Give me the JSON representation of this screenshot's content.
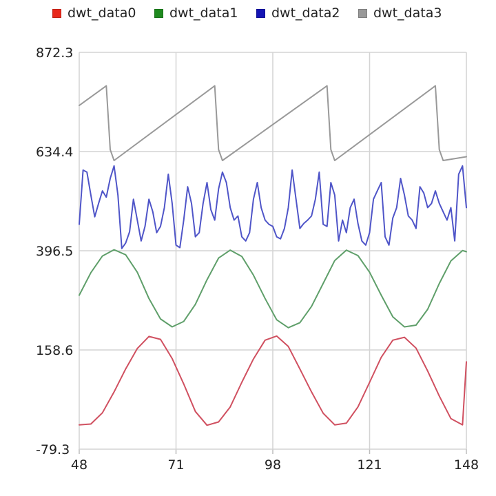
{
  "legend": [
    {
      "label": "dwt_data0",
      "color": "#e8291c"
    },
    {
      "label": "dwt_data1",
      "color": "#1f8a1f"
    },
    {
      "label": "dwt_data2",
      "color": "#1414b4"
    },
    {
      "label": "dwt_data3",
      "color": "#999999"
    }
  ],
  "chart_data": {
    "type": "line",
    "title": "",
    "xlabel": "",
    "ylabel": "",
    "xlim": [
      48,
      148
    ],
    "ylim": [
      -79.3,
      872.3
    ],
    "x_ticks": [
      "48",
      "71",
      "98",
      "121",
      "148"
    ],
    "y_ticks": [
      "872.3",
      "634.4",
      "396.5",
      "158.6",
      "-79.3"
    ],
    "grid": true,
    "legend_position": "top",
    "series": [
      {
        "name": "dwt_data0",
        "color": "#d05060",
        "x": [
          48,
          51,
          54,
          57,
          60,
          63,
          66,
          69,
          72,
          75,
          78,
          81,
          84,
          87,
          90,
          93,
          96,
          99,
          102,
          105,
          108,
          111,
          114,
          117,
          120,
          123,
          126,
          129,
          132,
          135,
          138,
          141,
          144,
          147,
          148
        ],
        "y": [
          -21,
          -19,
          8,
          58,
          113,
          162,
          191,
          184,
          138,
          77,
          11,
          -22,
          -14,
          22,
          81,
          137,
          182,
          192,
          167,
          113,
          58,
          7,
          -21,
          -17,
          22,
          81,
          141,
          182,
          189,
          163,
          108,
          48,
          -6,
          -21,
          130
        ]
      },
      {
        "name": "dwt_data1",
        "color": "#5f9f6a",
        "x": [
          48,
          51,
          54,
          57,
          60,
          63,
          66,
          69,
          72,
          75,
          78,
          81,
          84,
          87,
          90,
          93,
          96,
          99,
          102,
          105,
          108,
          111,
          114,
          117,
          120,
          123,
          126,
          129,
          132,
          135,
          138,
          141,
          144,
          147,
          148
        ],
        "y": [
          290,
          344,
          384,
          399,
          387,
          345,
          282,
          233,
          214,
          227,
          268,
          327,
          379,
          398,
          383,
          338,
          282,
          231,
          212,
          224,
          263,
          318,
          373,
          398,
          385,
          345,
          290,
          238,
          214,
          218,
          256,
          318,
          372,
          397,
          394
        ]
      },
      {
        "name": "dwt_data2",
        "color": "#4f55c8",
        "x": [
          48,
          49,
          50,
          51,
          52,
          53,
          54,
          55,
          56,
          57,
          58,
          59,
          60,
          61,
          62,
          63,
          64,
          65,
          66,
          67,
          68,
          69,
          70,
          71,
          72,
          73,
          74,
          75,
          76,
          77,
          78,
          79,
          80,
          81,
          82,
          83,
          84,
          85,
          86,
          87,
          88,
          89,
          90,
          91,
          92,
          93,
          94,
          95,
          96,
          97,
          98,
          99,
          100,
          101,
          102,
          103,
          104,
          105,
          106,
          107,
          108,
          109,
          110,
          111,
          112,
          113,
          114,
          115,
          116,
          117,
          118,
          119,
          120,
          121,
          122,
          123,
          124,
          125,
          126,
          127,
          128,
          129,
          130,
          131,
          132,
          133,
          134,
          135,
          136,
          137,
          138,
          139,
          140,
          141,
          142,
          143,
          144,
          145,
          146,
          147,
          148
        ],
        "y": [
          460,
          590,
          585,
          530,
          478,
          510,
          540,
          525,
          570,
          600,
          530,
          402,
          415,
          442,
          520,
          470,
          420,
          455,
          520,
          490,
          440,
          455,
          500,
          580,
          510,
          410,
          404,
          470,
          550,
          510,
          430,
          440,
          510,
          560,
          495,
          470,
          545,
          585,
          560,
          500,
          470,
          480,
          430,
          420,
          440,
          520,
          560,
          500,
          470,
          460,
          455,
          430,
          425,
          450,
          500,
          590,
          520,
          450,
          462,
          470,
          480,
          520,
          585,
          460,
          455,
          560,
          530,
          420,
          470,
          440,
          500,
          520,
          462,
          420,
          410,
          440,
          520,
          540,
          560,
          430,
          410,
          475,
          500,
          570,
          530,
          480,
          470,
          450,
          550,
          535,
          500,
          510,
          540,
          510,
          490,
          470,
          500,
          420,
          580,
          600,
          500
        ]
      },
      {
        "name": "dwt_data3",
        "color": "#999999",
        "x": [
          48,
          55,
          56,
          57,
          83,
          84,
          85,
          112,
          113,
          114,
          140,
          141,
          142,
          148
        ],
        "y": [
          745,
          792,
          639,
          613,
          792,
          639,
          613,
          792,
          639,
          613,
          792,
          639,
          613,
          622
        ]
      }
    ]
  }
}
